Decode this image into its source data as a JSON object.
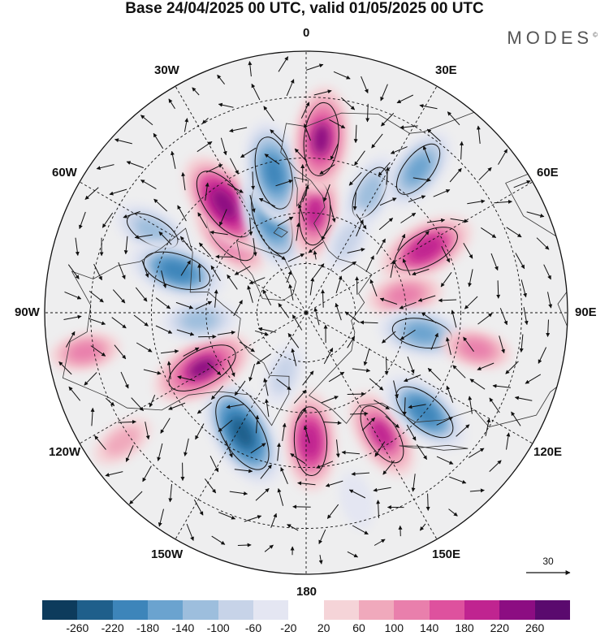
{
  "title": "Base 24/04/2025 00 UTC, valid 01/05/2025 00 UTC",
  "brand": "MODES",
  "brand_mark": "©",
  "longitude_labels": [
    {
      "text": "180",
      "lon": 180
    },
    {
      "text": "150E",
      "lon": 150
    },
    {
      "text": "120E",
      "lon": 120
    },
    {
      "text": "90E",
      "lon": 90
    },
    {
      "text": "60E",
      "lon": 60
    },
    {
      "text": "30E",
      "lon": 30
    },
    {
      "text": "0",
      "lon": 0
    },
    {
      "text": "30W",
      "lon": -30
    },
    {
      "text": "60W",
      "lon": -60
    },
    {
      "text": "90W",
      "lon": -90
    },
    {
      "text": "120W",
      "lon": -120
    },
    {
      "text": "150W",
      "lon": -150
    }
  ],
  "vector_scale_label": "30",
  "colorbar": {
    "colors": [
      "#0d3b5c",
      "#1f5f8b",
      "#3d85ba",
      "#6ba3cf",
      "#9dbedd",
      "#c7d3e8",
      "#e4e6f2",
      "#ffffff",
      "#f5d4d8",
      "#f0a9bc",
      "#e97fac",
      "#de519e",
      "#c02490",
      "#8c0d82",
      "#5a0a6e"
    ],
    "tick_labels": [
      "-260",
      "-220",
      "-180",
      "-140",
      "-100",
      "-60",
      "-20",
      "20",
      "60",
      "100",
      "140",
      "180",
      "220",
      "260"
    ]
  },
  "map": {
    "projection": "north polar stereographic",
    "anomaly_centers": [
      {
        "lat": 50,
        "lon": -152,
        "value": -260,
        "rotation": -30
      },
      {
        "lat": 52,
        "lon": 178,
        "value": 200
      },
      {
        "lat": 48,
        "lon": 148,
        "value": 180
      },
      {
        "lat": 45,
        "lon": 130,
        "value": -200
      },
      {
        "lat": 55,
        "lon": -118,
        "value": 220
      },
      {
        "lat": 58,
        "lon": -94,
        "value": -120
      },
      {
        "lat": 40,
        "lon": -62,
        "value": -140
      },
      {
        "lat": 50,
        "lon": -72,
        "value": -200
      },
      {
        "lat": 58,
        "lon": -45,
        "value": 160
      },
      {
        "lat": 50,
        "lon": -37,
        "value": 240
      },
      {
        "lat": 60,
        "lon": -20,
        "value": -220
      },
      {
        "lat": 48,
        "lon": -13,
        "value": -220
      },
      {
        "lat": 60,
        "lon": 5,
        "value": 180
      },
      {
        "lat": 40,
        "lon": 5,
        "value": 220
      },
      {
        "lat": 50,
        "lon": 28,
        "value": -140
      },
      {
        "lat": 38,
        "lon": 38,
        "value": -160
      },
      {
        "lat": 50,
        "lon": 62,
        "value": 200
      },
      {
        "lat": 60,
        "lon": 80,
        "value": 120
      },
      {
        "lat": 55,
        "lon": 100,
        "value": -160
      },
      {
        "lat": 40,
        "lon": 102,
        "value": 100
      },
      {
        "lat": 28,
        "lon": -100,
        "value": 100
      },
      {
        "lat": 28,
        "lon": -125,
        "value": 80
      },
      {
        "lat": 70,
        "lon": -160,
        "value": -80
      },
      {
        "lat": 65,
        "lon": 30,
        "value": -80
      },
      {
        "lat": 35,
        "lon": 165,
        "value": -60
      }
    ]
  }
}
